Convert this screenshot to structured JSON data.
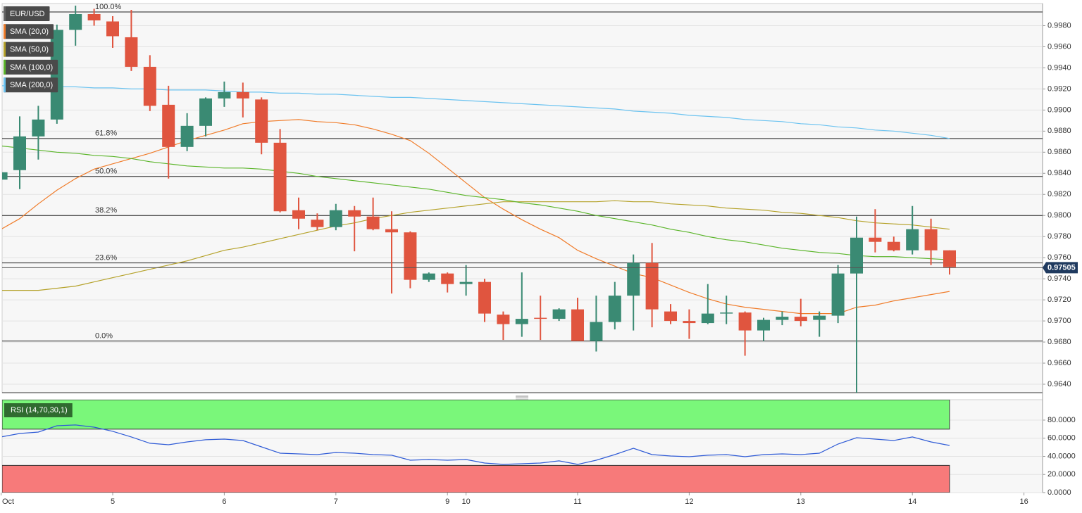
{
  "chart_data": {
    "type": "candlestick",
    "categories": [
      "Oct",
      null,
      null,
      null,
      null,
      null,
      "5",
      null,
      null,
      null,
      null,
      null,
      "6",
      null,
      null,
      null,
      null,
      null,
      "7",
      null,
      null,
      null,
      null,
      null,
      "9",
      "10",
      null,
      null,
      null,
      null,
      null,
      "11",
      null,
      null,
      null,
      null,
      null,
      "12",
      null,
      null,
      null,
      null,
      null,
      "13",
      null,
      null,
      null,
      null,
      null,
      "14",
      null,
      null,
      null,
      null,
      null,
      "16"
    ],
    "ylim": [
      0.9632,
      1.0001
    ],
    "yticks": [
      {
        "value": 0.964,
        "label": "0.9640"
      },
      {
        "value": 0.966,
        "label": "0.9660"
      },
      {
        "value": 0.968,
        "label": "0.9680"
      },
      {
        "value": 0.97,
        "label": "0.9700"
      },
      {
        "value": 0.972,
        "label": "0.9720"
      },
      {
        "value": 0.974,
        "label": "0.9740"
      },
      {
        "value": 0.976,
        "label": "0.9760"
      },
      {
        "value": 0.978,
        "label": "0.9780"
      },
      {
        "value": 0.98,
        "label": "0.9800"
      },
      {
        "value": 0.982,
        "label": "0.9820"
      },
      {
        "value": 0.984,
        "label": "0.9840"
      },
      {
        "value": 0.986,
        "label": "0.9860"
      },
      {
        "value": 0.988,
        "label": "0.9880"
      },
      {
        "value": 0.99,
        "label": "0.9900"
      },
      {
        "value": 0.992,
        "label": "0.9920"
      },
      {
        "value": 0.994,
        "label": "0.9940"
      },
      {
        "value": 0.996,
        "label": "0.9960"
      },
      {
        "value": 0.998,
        "label": "0.9980"
      }
    ],
    "grid": true,
    "candles": {
      "name": "EUR/USD",
      "up_color": "#3a8a73",
      "down_color": "#e0553f",
      "open": [
        0.9834,
        0.9843,
        0.9875,
        0.9891,
        0.9976,
        0.9991,
        0.9984,
        0.9969,
        0.9941,
        0.9905,
        0.9865,
        0.9885,
        0.9911,
        0.9917,
        0.991,
        0.9869,
        0.9805,
        0.9796,
        0.9789,
        0.9805,
        0.9799,
        0.9787,
        0.9784,
        0.9739,
        0.9745,
        0.9735,
        0.9737,
        0.9706,
        0.9697,
        0.9703,
        0.9702,
        0.9711,
        0.9681,
        0.9699,
        0.9724,
        0.9755,
        0.9709,
        0.97,
        0.9698,
        0.9707,
        0.9708,
        0.9691,
        0.9701,
        0.9704,
        0.9701,
        0.9705,
        0.9745,
        0.9779,
        0.9775,
        0.9767,
        0.9787,
        0.9767,
        null,
        null,
        null,
        null
      ],
      "high": [
        0.9846,
        0.9894,
        0.9904,
        0.9981,
        0.9999,
        0.9996,
        0.9989,
        0.9995,
        0.9952,
        0.9923,
        0.9897,
        0.9912,
        0.9927,
        0.9926,
        0.9912,
        0.9882,
        0.9817,
        0.9802,
        0.9811,
        0.9809,
        0.9817,
        0.9804,
        0.9785,
        0.9746,
        0.9746,
        0.9753,
        0.974,
        0.9709,
        0.9746,
        0.9724,
        0.9712,
        0.9722,
        0.9724,
        0.9737,
        0.9763,
        0.9774,
        0.9716,
        0.9711,
        0.9735,
        0.9724,
        0.9709,
        0.9703,
        0.9709,
        0.9721,
        0.9709,
        0.9753,
        0.9799,
        0.9806,
        0.978,
        0.9809,
        0.9797,
        0.9767,
        null,
        null,
        null,
        null
      ],
      "low": [
        0.9806,
        0.9825,
        0.9853,
        0.9887,
        0.9961,
        0.998,
        0.9959,
        0.9937,
        0.9899,
        0.9835,
        0.9861,
        0.9875,
        0.9903,
        0.9893,
        0.9858,
        0.9803,
        0.9787,
        0.9786,
        0.9786,
        0.9766,
        0.9786,
        0.9726,
        0.9731,
        0.9737,
        0.9727,
        0.9724,
        0.9699,
        0.9682,
        0.9685,
        0.9682,
        0.97,
        0.9681,
        0.9671,
        0.9692,
        0.9691,
        0.9694,
        0.9697,
        0.9683,
        0.9697,
        0.9697,
        0.9667,
        0.9681,
        0.9696,
        0.9695,
        0.9685,
        0.9698,
        0.9632,
        0.9765,
        0.9766,
        0.9763,
        0.9753,
        0.9744,
        null,
        null,
        null,
        null
      ],
      "close": [
        0.9841,
        0.9875,
        0.9891,
        0.9976,
        0.9991,
        0.9985,
        0.997,
        0.9941,
        0.9904,
        0.9865,
        0.9885,
        0.9911,
        0.9917,
        0.9911,
        0.9869,
        0.9804,
        0.9797,
        0.9789,
        0.9805,
        0.9799,
        0.9787,
        0.9784,
        0.9739,
        0.9745,
        0.9735,
        0.9737,
        0.9707,
        0.9697,
        0.9702,
        0.9702,
        0.9711,
        0.9681,
        0.9699,
        0.9724,
        0.9755,
        0.9711,
        0.97,
        0.9698,
        0.9707,
        0.9708,
        0.9691,
        0.9701,
        0.9704,
        0.97,
        0.9705,
        0.9745,
        0.9779,
        0.9775,
        0.9767,
        0.9787,
        0.9767,
        0.9751,
        null,
        null,
        null,
        null
      ]
    },
    "series": [
      {
        "name": "SMA (20,0)",
        "color": "#f07c2a",
        "values": [
          0.9787,
          0.9797,
          0.9811,
          0.9824,
          0.9835,
          0.9844,
          0.9849,
          0.9854,
          0.9859,
          0.9865,
          0.9871,
          0.9876,
          0.9881,
          0.9887,
          0.9889,
          0.989,
          0.9891,
          0.9889,
          0.9888,
          0.9886,
          0.9882,
          0.9877,
          0.9871,
          0.9859,
          0.9845,
          0.9831,
          0.9817,
          0.9806,
          0.9796,
          0.9787,
          0.9779,
          0.9767,
          0.9759,
          0.9752,
          0.9745,
          0.9741,
          0.9734,
          0.9727,
          0.9721,
          0.9716,
          0.9713,
          0.9711,
          0.9709,
          0.9707,
          0.9707,
          0.9707,
          0.9713,
          0.9715,
          0.9719,
          0.9722,
          0.9725,
          0.9728,
          null,
          null,
          null,
          null
        ]
      },
      {
        "name": "SMA (50,0)",
        "color": "#b5a22a",
        "values": [
          0.9729,
          0.9729,
          0.9729,
          0.9731,
          0.9733,
          0.9737,
          0.9741,
          0.9745,
          0.9749,
          0.9753,
          0.9757,
          0.9762,
          0.9767,
          0.977,
          0.9774,
          0.9778,
          0.9782,
          0.9786,
          0.979,
          0.9793,
          0.9797,
          0.98,
          0.9803,
          0.9805,
          0.9807,
          0.9809,
          0.9811,
          0.9813,
          0.9813,
          0.9813,
          0.9813,
          0.9813,
          0.9813,
          0.9814,
          0.9813,
          0.9813,
          0.9811,
          0.981,
          0.9809,
          0.9807,
          0.9806,
          0.9805,
          0.9803,
          0.9802,
          0.98,
          0.9798,
          0.9795,
          0.9793,
          0.9792,
          0.9791,
          0.9789,
          0.9787,
          null,
          null,
          null,
          null
        ]
      },
      {
        "name": "SMA (100,0)",
        "color": "#5bb52a",
        "values": [
          0.9866,
          0.9864,
          0.9862,
          0.986,
          0.9859,
          0.9857,
          0.9856,
          0.9854,
          0.9851,
          0.9849,
          0.9847,
          0.9846,
          0.9845,
          0.9845,
          0.9844,
          0.9842,
          0.984,
          0.9837,
          0.9835,
          0.9833,
          0.9831,
          0.9829,
          0.9827,
          0.9825,
          0.9822,
          0.9819,
          0.9817,
          0.9815,
          0.9812,
          0.981,
          0.9807,
          0.9804,
          0.98,
          0.9797,
          0.9794,
          0.9791,
          0.9787,
          0.9784,
          0.978,
          0.9777,
          0.9775,
          0.9772,
          0.9769,
          0.9767,
          0.9765,
          0.9764,
          0.9762,
          0.9761,
          0.9761,
          0.976,
          0.9759,
          0.9758,
          null,
          null,
          null,
          null
        ]
      },
      {
        "name": "SMA (200,0)",
        "color": "#6cc3f0",
        "values": [
          0.9923,
          0.9923,
          0.9922,
          0.9922,
          0.9922,
          0.9921,
          0.9921,
          0.992,
          0.992,
          0.9919,
          0.9919,
          0.9919,
          0.9918,
          0.9917,
          0.9917,
          0.9916,
          0.9916,
          0.9915,
          0.9915,
          0.9914,
          0.9913,
          0.9912,
          0.9912,
          0.9911,
          0.991,
          0.9909,
          0.9908,
          0.9907,
          0.9906,
          0.9905,
          0.9904,
          0.9903,
          0.9902,
          0.9901,
          0.9899,
          0.9898,
          0.9897,
          0.9895,
          0.9894,
          0.9893,
          0.9891,
          0.989,
          0.9889,
          0.9887,
          0.9886,
          0.9884,
          0.9883,
          0.9881,
          0.988,
          0.9878,
          0.9876,
          0.9873,
          null,
          null,
          null,
          null
        ]
      }
    ],
    "fib_levels": [
      {
        "label": "100.0%",
        "value": 0.9993
      },
      {
        "label": "61.8%",
        "value": 0.9873
      },
      {
        "label": "50.0%",
        "value": 0.9837
      },
      {
        "label": "38.2%",
        "value": 0.98
      },
      {
        "label": "23.6%",
        "value": 0.9755
      },
      {
        "label": "0.0%",
        "value": 0.9681
      }
    ],
    "last_price": 0.97505,
    "last_price_color": "#1f3a5f",
    "indicator": {
      "type": "line",
      "name": "RSI (14,70,30,1)",
      "color": "#2f5bd6",
      "values": [
        61.4,
        65.2,
        66.8,
        73.8,
        74.6,
        72.2,
        67.6,
        61.4,
        54.4,
        52.8,
        55.9,
        58.3,
        59.0,
        57.5,
        50.5,
        43.5,
        42.7,
        41.9,
        44.3,
        43.5,
        41.9,
        41.2,
        35.7,
        36.5,
        35.7,
        36.5,
        32.6,
        31.1,
        31.8,
        32.6,
        35.0,
        31.1,
        35.7,
        41.9,
        48.9,
        41.9,
        40.4,
        39.6,
        41.2,
        41.9,
        39.6,
        41.9,
        42.7,
        41.9,
        43.5,
        53.6,
        60.6,
        59.0,
        57.5,
        61.4,
        55.9,
        52.0,
        null,
        null,
        null,
        null
      ],
      "ylim": [
        0,
        102.5
      ],
      "yticks": [
        {
          "value": 0,
          "label": "0.0000"
        },
        {
          "value": 20,
          "label": "20.0000"
        },
        {
          "value": 40,
          "label": "40.0000"
        },
        {
          "value": 60,
          "label": "60.0000"
        },
        {
          "value": 80,
          "label": "80.0000"
        }
      ],
      "overbought": 70,
      "oversold": 30,
      "overbought_color": "#7af77a",
      "oversold_color": "#f77a7a"
    }
  }
}
